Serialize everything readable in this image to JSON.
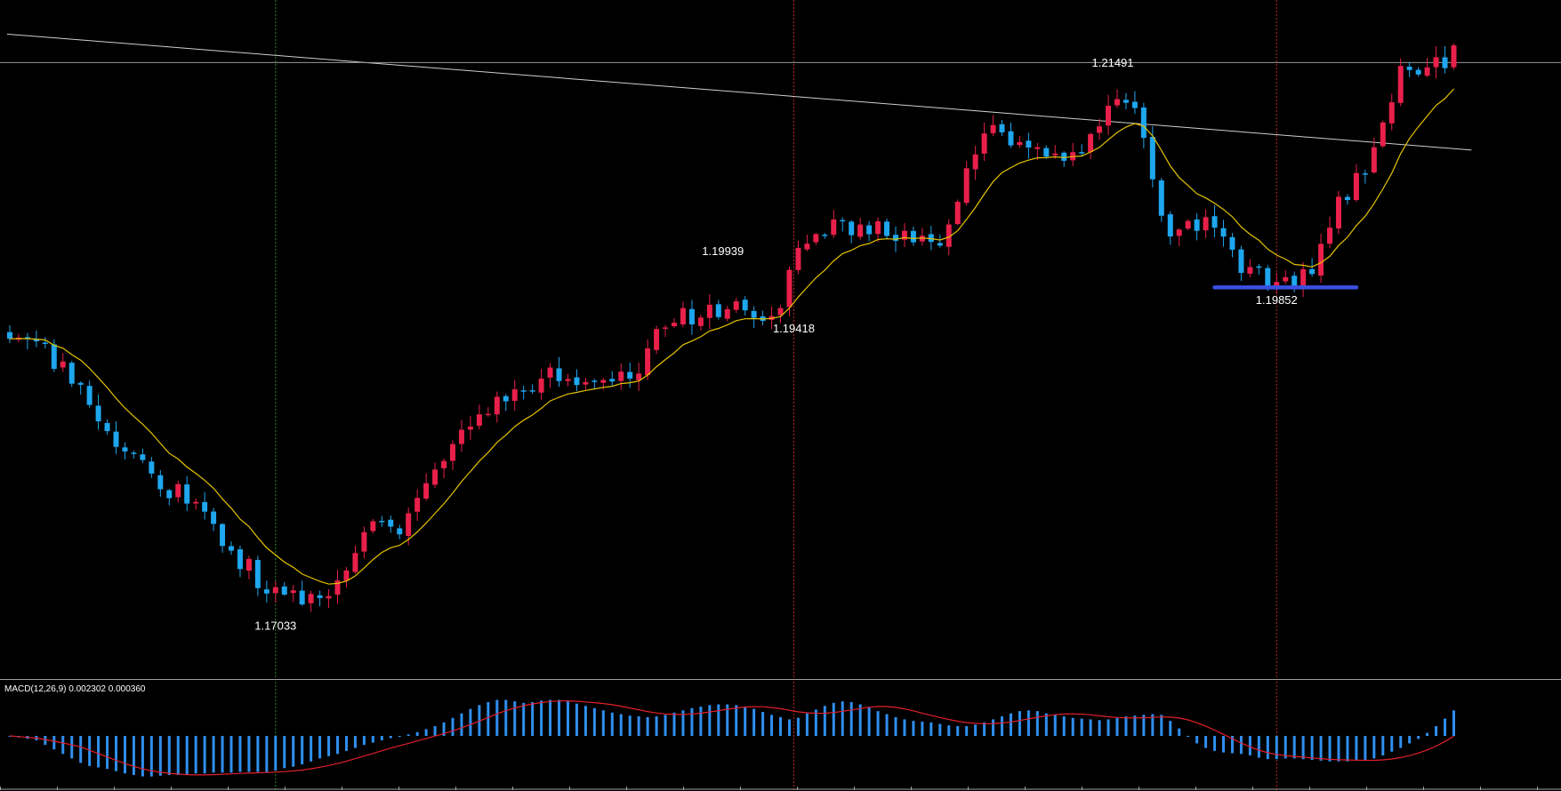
{
  "chart_data": [
    {
      "type": "candlestick",
      "name": "",
      "ylim": [
        1.164,
        1.2238
      ],
      "bar_count": 164,
      "colors": {
        "bull": "#e8204a",
        "bear": "#1ea6ee",
        "ma": "#e6c300",
        "background": "#000000"
      },
      "trendline": {
        "from": {
          "bar": -0.3,
          "price": 1.2208
        },
        "to": {
          "bar": 165,
          "price": 1.2106
        },
        "color": "#cfcfcf"
      },
      "horizontal_line": {
        "price": 1.2183,
        "color": "#9a9a9a"
      },
      "support_line": {
        "from_bar": 136,
        "to_bar": 152,
        "price": 1.19852,
        "color": "#3b4fe0"
      },
      "vlines": [
        {
          "bar": 30,
          "style": "green-dotted"
        },
        {
          "bar": 88.5,
          "style": "red-dotted"
        },
        {
          "bar": 143,
          "style": "red-dotted"
        }
      ],
      "annotations": [
        {
          "text": "1.17033",
          "bar": 30,
          "price": 1.16842
        },
        {
          "text": "1.19939",
          "bar": 80.5,
          "price": 1.20137
        },
        {
          "text": "1.19418",
          "bar": 88.5,
          "price": 1.19455
        },
        {
          "text": "1.21491",
          "bar": 124.5,
          "price": 1.21792
        },
        {
          "text": "1.19852",
          "bar": 143,
          "price": 1.19705
        }
      ],
      "anchors": [
        {
          "bar": 0,
          "close": 1.194
        },
        {
          "bar": 6,
          "close": 1.192
        },
        {
          "bar": 12,
          "close": 1.1845
        },
        {
          "bar": 22,
          "close": 1.1788
        },
        {
          "bar": 29,
          "close": 1.1716
        },
        {
          "bar": 35,
          "close": 1.1712
        },
        {
          "bar": 40,
          "close": 1.177
        },
        {
          "bar": 44,
          "close": 1.1768
        },
        {
          "bar": 48,
          "close": 1.1825
        },
        {
          "bar": 51,
          "close": 1.186
        },
        {
          "bar": 56,
          "close": 1.1885
        },
        {
          "bar": 60,
          "close": 1.1905
        },
        {
          "bar": 65,
          "close": 1.1902
        },
        {
          "bar": 70,
          "close": 1.1905
        },
        {
          "bar": 74,
          "close": 1.195
        },
        {
          "bar": 79,
          "close": 1.197
        },
        {
          "bar": 83,
          "close": 1.1965
        },
        {
          "bar": 87,
          "close": 1.1967
        },
        {
          "bar": 89,
          "close": 1.202
        },
        {
          "bar": 93,
          "close": 1.2045
        },
        {
          "bar": 97,
          "close": 1.2032
        },
        {
          "bar": 101,
          "close": 1.2035
        },
        {
          "bar": 105,
          "close": 1.2022
        },
        {
          "bar": 108,
          "close": 1.209
        },
        {
          "bar": 111,
          "close": 1.2128
        },
        {
          "bar": 114,
          "close": 1.2113
        },
        {
          "bar": 118,
          "close": 1.2103
        },
        {
          "bar": 121,
          "close": 1.2103
        },
        {
          "bar": 124,
          "close": 1.2145
        },
        {
          "bar": 127,
          "close": 1.2143
        },
        {
          "bar": 131,
          "close": 1.203
        },
        {
          "bar": 135,
          "close": 1.2047
        },
        {
          "bar": 139,
          "close": 1.1998
        },
        {
          "bar": 143,
          "close": 1.199
        },
        {
          "bar": 147,
          "close": 1.1997
        },
        {
          "bar": 150,
          "close": 1.2065
        },
        {
          "bar": 153,
          "close": 1.2085
        },
        {
          "bar": 157,
          "close": 1.218
        }
      ]
    },
    {
      "type": "bar",
      "name": "MACD(12,26,9) 0.002302 0.000360",
      "ylim": [
        -0.0058,
        0.0058
      ],
      "colors": {
        "histogram": "#2f8fef",
        "signal": "#e0202a"
      },
      "histogram": [
        0,
        -0.0002,
        -0.0004,
        -0.0006,
        -0.0012,
        -0.0018,
        -0.0024,
        -0.003,
        -0.0036,
        -0.004,
        -0.0042,
        -0.0044,
        -0.0047,
        -0.005,
        -0.0052,
        -0.0054,
        -0.0054,
        -0.0053,
        -0.0052,
        -0.0052,
        -0.0051,
        -0.005,
        -0.005,
        -0.0049,
        -0.0049,
        -0.0049,
        -0.0048,
        -0.0048,
        -0.0048,
        -0.0048,
        -0.0046,
        -0.0043,
        -0.0041,
        -0.0038,
        -0.0034,
        -0.003,
        -0.0027,
        -0.0024,
        -0.002,
        -0.0016,
        -0.0012,
        -0.0009,
        -0.0006,
        -0.0003,
        -0.0001,
        0.0002,
        0.0005,
        0.0009,
        0.0013,
        0.0018,
        0.0024,
        0.003,
        0.0036,
        0.0041,
        0.0045,
        0.0048,
        0.0048,
        0.0046,
        0.0044,
        0.0045,
        0.0047,
        0.0048,
        0.0048,
        0.0046,
        0.0043,
        0.004,
        0.0037,
        0.0034,
        0.0031,
        0.0029,
        0.0027,
        0.0026,
        0.0025,
        0.0026,
        0.0028,
        0.0031,
        0.0034,
        0.0037,
        0.0039,
        0.0041,
        0.0042,
        0.0042,
        0.0041,
        0.0039,
        0.0036,
        0.0032,
        0.0028,
        0.0025,
        0.0022,
        0.0024,
        0.003,
        0.0035,
        0.004,
        0.0044,
        0.0046,
        0.0045,
        0.0042,
        0.0038,
        0.0033,
        0.0029,
        0.0025,
        0.0022,
        0.002,
        0.0019,
        0.0018,
        0.0016,
        0.0014,
        0.0013,
        0.0013,
        0.0015,
        0.0018,
        0.0022,
        0.0026,
        0.003,
        0.0033,
        0.0034,
        0.0033,
        0.003,
        0.0028,
        0.0026,
        0.0024,
        0.0023,
        0.0022,
        0.0021,
        0.0022,
        0.0024,
        0.0026,
        0.0027,
        0.0028,
        0.0029,
        0.0028,
        0.002,
        0.001,
        0.0,
        -0.001,
        -0.0016,
        -0.002,
        -0.0022,
        -0.0023,
        -0.0024,
        -0.0026,
        -0.0029,
        -0.0031,
        -0.0031,
        -0.003,
        -0.003,
        -0.0031,
        -0.0032,
        -0.0033,
        -0.0034,
        -0.0034,
        -0.0034,
        -0.0033,
        -0.0032,
        -0.003,
        -0.0026,
        -0.0021,
        -0.0016,
        -0.001,
        -0.0004,
        0.0004,
        0.0013,
        0.0023,
        0.0034
      ]
    }
  ]
}
